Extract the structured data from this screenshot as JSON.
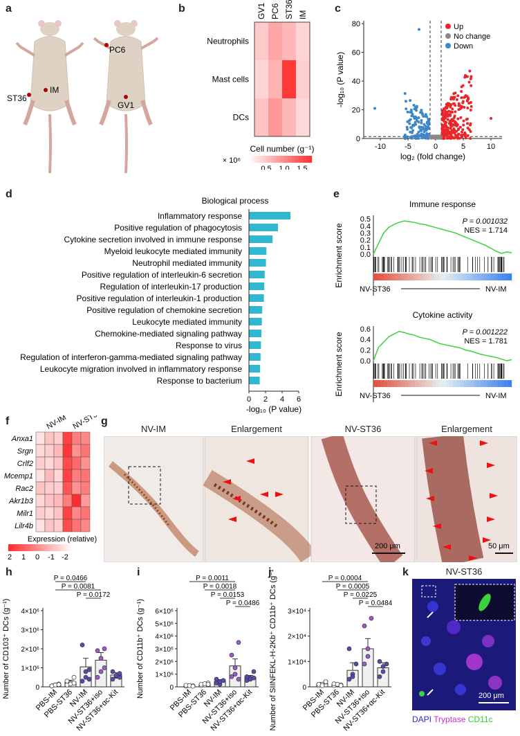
{
  "panel_letters": {
    "a": "a",
    "b": "b",
    "c": "c",
    "d": "d",
    "e": "e",
    "f": "f",
    "g": "g",
    "h": "h",
    "i": "i",
    "j": "j",
    "k": "k"
  },
  "panel_a": {
    "points_left": [
      "ST36",
      "IM"
    ],
    "points_right": [
      "PC6",
      "GV1"
    ]
  },
  "chart_data": [
    {
      "id": "b",
      "type": "heatmap",
      "columns": [
        "GV1",
        "PC6",
        "ST36",
        "IM"
      ],
      "rows": [
        "Neutrophils",
        "Mast cells",
        "DCs"
      ],
      "values": [
        [
          0.4,
          0.7,
          0.55,
          0.3
        ],
        [
          0.3,
          0.6,
          1.7,
          0.35
        ],
        [
          0.45,
          0.85,
          0.55,
          0.25
        ]
      ],
      "colorbar": {
        "title": "Cell number (g⁻¹)",
        "ticks": [
          "0.5",
          "1.0",
          "1.5"
        ],
        "scale": "× 10⁶"
      }
    },
    {
      "id": "c",
      "type": "scatter",
      "xlabel": "log₂ (fold change)",
      "ylabel": "-log₁₀ (P value)",
      "xticks": [
        "-10",
        "-5",
        "0",
        "5",
        "10"
      ],
      "yticks": [
        "0",
        "10",
        "20",
        "30",
        "40",
        "50",
        "60",
        "70",
        "80"
      ],
      "xlim": [
        -13,
        12
      ],
      "ylim": [
        0,
        82
      ],
      "legend": [
        "Up",
        "No change",
        "Down"
      ],
      "colors": {
        "up": "#e8272b",
        "none": "#888888",
        "down": "#3f86c6"
      }
    },
    {
      "id": "d",
      "type": "bar",
      "orientation": "horizontal",
      "title": "Biological process",
      "categories": [
        "Inflammatory response",
        "Positive regulation of phagocytosis",
        "Cytokine secretion involved in immune response",
        "Myeloid leukocyte mediated immunity",
        "Neutrophil mediated immunity",
        "Positive regulation of interleukin-6 secretion",
        "Regulation of interleukin-17 production",
        "Positive regulation of interleukin-1 production",
        "Positive regulation of chemokine secretion",
        "Leukocyte mediated immunity",
        "Chemokine-mediated signaling pathway",
        "Response to virus",
        "Regulation of interferon-gamma-mediated signaling pathway",
        "Leukocyte migration involved in inflammatory response",
        "Response to bacterium"
      ],
      "values": [
        5.0,
        3.5,
        2.85,
        2.1,
        2.05,
        1.9,
        1.85,
        1.8,
        1.6,
        1.55,
        1.5,
        1.45,
        1.4,
        1.35,
        1.3
      ],
      "xlabel": "-log₁₀ (P value)",
      "xticks": [
        "0",
        "2",
        "4",
        "6"
      ],
      "xlim": [
        0,
        6
      ],
      "color": "#2fb8d0"
    },
    {
      "id": "e1",
      "type": "line",
      "title": "Immune response",
      "ylabel": "Enrichment score",
      "yticks": [
        "0.5",
        "0.4",
        "0.3",
        "0.2",
        "0.1",
        "0.0"
      ],
      "annotation_p": "P = 0.001032",
      "annotation_nes": "NES = 1.714",
      "left_label": "NV-ST36",
      "right_label": "NV-IM",
      "y": [
        0,
        0.15,
        0.3,
        0.38,
        0.42,
        0.45,
        0.47,
        0.46,
        0.45,
        0.43,
        0.42,
        0.4,
        0.38,
        0.36,
        0.34,
        0.32,
        0.3,
        0.27,
        0.24,
        0.21,
        0.18,
        0.15,
        0.12,
        0.08,
        0.04,
        0.01,
        0.03,
        0.02
      ]
    },
    {
      "id": "e2",
      "type": "line",
      "title": "Cytokine activity",
      "ylabel": "Enrichment score",
      "yticks": [
        "0.6",
        "0.4",
        "0.2",
        "0.0"
      ],
      "annotation_p": "P = 0.001222",
      "annotation_nes": "NES = 1.781",
      "left_label": "NV-ST36",
      "right_label": "NV-IM",
      "y": [
        0,
        0.25,
        0.35,
        0.45,
        0.5,
        0.55,
        0.53,
        0.5,
        0.48,
        0.44,
        0.42,
        0.4,
        0.36,
        0.32,
        0.3,
        0.28,
        0.26,
        0.24,
        0.2,
        0.18,
        0.15,
        0.12,
        0.1,
        0.08,
        0.06,
        0.03,
        0.0,
        0.02
      ]
    },
    {
      "id": "f",
      "type": "heatmap",
      "groups": [
        "NV-IM",
        "NV-ST36"
      ],
      "rows": [
        "Anxa1",
        "Srgn",
        "Crlf2",
        "Mcemp1",
        "Rac2",
        "Akr1b3",
        "Milr1",
        "Lilr4b"
      ],
      "values": [
        [
          0.2,
          0.5,
          0.4,
          1.8,
          1.2,
          1.1
        ],
        [
          0.3,
          0.4,
          0.6,
          1.9,
          1.0,
          1.3
        ],
        [
          0.4,
          0.3,
          0.5,
          1.7,
          1.4,
          1.0
        ],
        [
          0.2,
          0.6,
          0.3,
          1.8,
          1.2,
          1.3
        ],
        [
          0.5,
          0.4,
          0.4,
          1.6,
          1.0,
          1.2
        ],
        [
          0.3,
          0.5,
          0.6,
          1.2,
          2.0,
          0.9
        ],
        [
          0.4,
          0.3,
          0.5,
          1.8,
          1.1,
          1.3
        ],
        [
          0.2,
          0.5,
          0.4,
          1.7,
          1.3,
          1.1
        ]
      ],
      "colorbar": {
        "title": "Expression (relative)",
        "ticks": [
          "2",
          "1",
          "0",
          "-1",
          "-2"
        ]
      }
    },
    {
      "id": "h",
      "type": "bar",
      "categories": [
        "PBS-IM",
        "PBS-ST36",
        "NV-IM",
        "NV-ST36+iso",
        "NV-ST36+αc-Kit"
      ],
      "values": [
        0.1,
        0.25,
        1.05,
        1.4,
        0.62
      ],
      "errors": [
        0.05,
        0.1,
        0.45,
        0.4,
        0.12
      ],
      "ylabel": "Number of CD103⁺ DCs (g⁻¹)",
      "yticks": [
        "0",
        "1×10⁶",
        "2×10⁶",
        "3×10⁶",
        "4×10⁶"
      ],
      "ylim": [
        0,
        4
      ],
      "points": [
        [
          0.05,
          0.1,
          0.15,
          0.05,
          0.1,
          0.12
        ],
        [
          0.1,
          0.2,
          0.5,
          0.3,
          0.15,
          0.2
        ],
        [
          0.3,
          0.5,
          0.9,
          2.2,
          0.8,
          0.4
        ],
        [
          0.5,
          0.8,
          2.0,
          1.9,
          1.5,
          1.0
        ],
        [
          0.4,
          0.55,
          0.7,
          0.8,
          0.6,
          0.5
        ]
      ],
      "pvalues": [
        {
          "a": 0,
          "b": 2,
          "label": "P = 0.0466"
        },
        {
          "a": 0,
          "b": 3,
          "label": "P = 0.0081"
        },
        {
          "a": 2,
          "b": 3,
          "label": "P = 0.0172"
        }
      ]
    },
    {
      "id": "i",
      "type": "bar",
      "categories": [
        "PBS-IM",
        "PBS-ST36",
        "NV-IM",
        "NV-ST36+iso",
        "NV-ST36+αc-Kit"
      ],
      "values": [
        0.1,
        0.2,
        0.42,
        1.65,
        0.75
      ],
      "errors": [
        0.03,
        0.06,
        0.15,
        0.55,
        0.15
      ],
      "ylabel": "Number of CD11b⁺ DCs (g⁻¹)",
      "yticks": [
        "0",
        "1×10⁶",
        "2×10⁶",
        "3×10⁶",
        "4×10⁶",
        "5×10⁶",
        "6×10⁶"
      ],
      "ylim": [
        0,
        6
      ],
      "points": [
        [
          0.05,
          0.1,
          0.08,
          0.12,
          0.1,
          0.05
        ],
        [
          0.1,
          0.15,
          0.3,
          0.2,
          0.25,
          0.2
        ],
        [
          0.3,
          0.2,
          0.5,
          0.6,
          0.4,
          0.5
        ],
        [
          0.8,
          1.0,
          3.5,
          2.5,
          1.5,
          0.6
        ],
        [
          0.5,
          0.7,
          1.2,
          0.8,
          0.6,
          0.7
        ]
      ],
      "pvalues": [
        {
          "a": 0,
          "b": 3,
          "label": "P = 0.0011"
        },
        {
          "a": 1,
          "b": 3,
          "label": "P = 0.0018"
        },
        {
          "a": 2,
          "b": 3,
          "label": "P = 0.0153"
        },
        {
          "a": 3,
          "b": 4,
          "label": "P = 0.0486"
        }
      ]
    },
    {
      "id": "j",
      "type": "bar",
      "categories": [
        "PBS-IM",
        "PBS-ST36",
        "NV-IM",
        "NV-ST36+iso",
        "NV-ST36+αc-Kit"
      ],
      "values": [
        0.12,
        0.08,
        0.65,
        1.5,
        0.75
      ],
      "errors": [
        0.05,
        0.03,
        0.3,
        0.4,
        0.2
      ],
      "ylabel": "Number of SIINFEKL-H-2Kb⁺ CD11b⁺ DCs (g⁻¹)",
      "yticks": [
        "0",
        "1×10⁴",
        "2×10⁴",
        "3×10⁴"
      ],
      "ylim": [
        0,
        3
      ],
      "points": [
        [
          0.05,
          0.1,
          0.2,
          0.1,
          0.05,
          0.2
        ],
        [
          0.05,
          0.1,
          0.08,
          0.12,
          0.1,
          0.05
        ],
        [
          0.3,
          0.5,
          0.9,
          1.5,
          0.4
        ],
        [
          0.9,
          1.2,
          2.7,
          2.4,
          1.5
        ],
        [
          0.4,
          0.6,
          0.9,
          1.0,
          0.8
        ]
      ],
      "pvalues": [
        {
          "a": 0,
          "b": 3,
          "label": "P = 0.0004"
        },
        {
          "a": 1,
          "b": 3,
          "label": "P = 0.0005"
        },
        {
          "a": 2,
          "b": 3,
          "label": "P = 0.0225"
        },
        {
          "a": 3,
          "b": 4,
          "label": "P = 0.0484"
        }
      ]
    }
  ],
  "panel_g": {
    "titles": [
      "NV-IM",
      "Enlargement",
      "NV-ST36",
      "Enlargement"
    ],
    "scalebars": [
      "200 μm",
      "50 μm"
    ]
  },
  "panel_k": {
    "title": "NV-ST36",
    "scalebar": "200 μm",
    "legend": [
      "DAPI",
      "Tryptase",
      "CD11c"
    ],
    "legend_colors": [
      "#2b2bd6",
      "#d02ad0",
      "#2ed02e"
    ]
  }
}
